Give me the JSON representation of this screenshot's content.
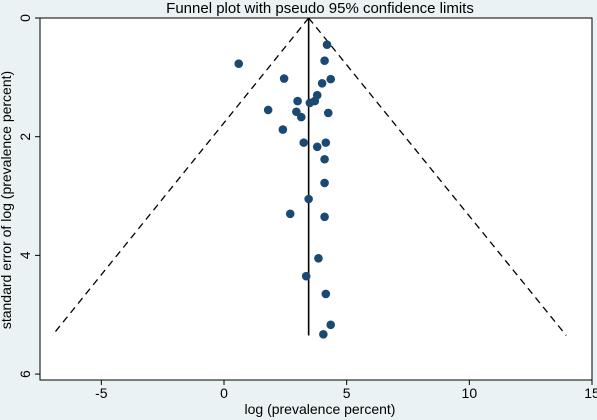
{
  "chart_data": {
    "type": "scatter",
    "title": "Funnel plot with pseudo 95% confidence limits",
    "xlabel": "log (prevalence percent)",
    "ylabel": "standard error of log (prevalence percent)",
    "xlim": [
      -7.5,
      15
    ],
    "ylim": [
      0,
      6.1
    ],
    "y_reversed": true,
    "xticks": [
      -5,
      0,
      5,
      10,
      15
    ],
    "xtick_labels": [
      "-5",
      "0",
      "5",
      "10",
      "15"
    ],
    "yticks": [
      0,
      2,
      4,
      6
    ],
    "ytick_labels": [
      "0",
      "2",
      "4",
      "6"
    ],
    "grid": false,
    "legend": "none",
    "pooled_estimate": 3.45,
    "pseudo_ci_limits": {
      "se_max": 5.35,
      "lower_at_se_max": -7.0,
      "upper_at_se_max": 13.95
    },
    "points": [
      {
        "x": 4.2,
        "y": 0.45
      },
      {
        "x": 0.6,
        "y": 0.77
      },
      {
        "x": 4.1,
        "y": 0.72
      },
      {
        "x": 2.45,
        "y": 1.02
      },
      {
        "x": 4.35,
        "y": 1.03
      },
      {
        "x": 4.0,
        "y": 1.1
      },
      {
        "x": 3.8,
        "y": 1.3
      },
      {
        "x": 3.0,
        "y": 1.4
      },
      {
        "x": 3.5,
        "y": 1.43
      },
      {
        "x": 3.7,
        "y": 1.4
      },
      {
        "x": 1.8,
        "y": 1.55
      },
      {
        "x": 2.95,
        "y": 1.58
      },
      {
        "x": 3.15,
        "y": 1.67
      },
      {
        "x": 4.25,
        "y": 1.6
      },
      {
        "x": 2.4,
        "y": 1.88
      },
      {
        "x": 3.25,
        "y": 2.1
      },
      {
        "x": 3.8,
        "y": 2.17
      },
      {
        "x": 4.15,
        "y": 2.1
      },
      {
        "x": 4.1,
        "y": 2.38
      },
      {
        "x": 4.1,
        "y": 2.78
      },
      {
        "x": 3.45,
        "y": 3.05
      },
      {
        "x": 2.7,
        "y": 3.3
      },
      {
        "x": 4.1,
        "y": 3.35
      },
      {
        "x": 3.85,
        "y": 4.05
      },
      {
        "x": 3.35,
        "y": 4.35
      },
      {
        "x": 4.15,
        "y": 4.65
      },
      {
        "x": 4.35,
        "y": 5.17
      },
      {
        "x": 4.05,
        "y": 5.33
      }
    ],
    "colors": {
      "plot_bg": "#ffffff",
      "outer_bg": "#eaf2f3",
      "marker": "#1a4a72",
      "line": "#000000"
    }
  }
}
